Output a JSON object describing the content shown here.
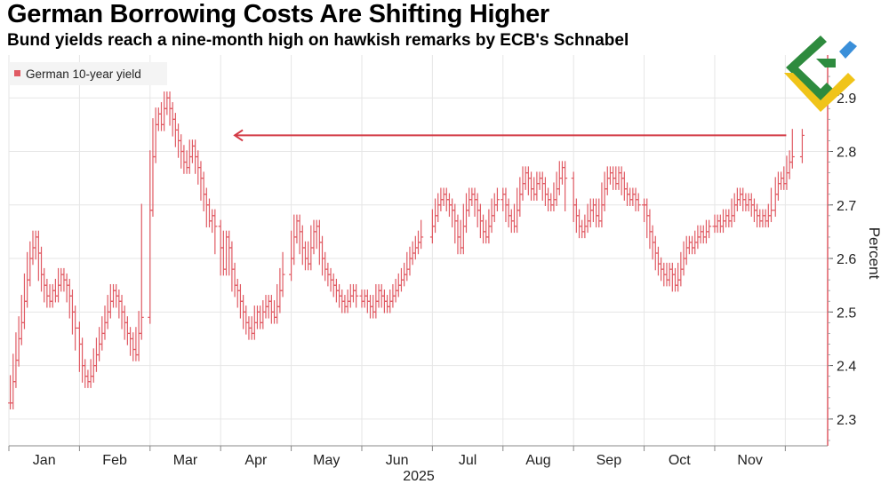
{
  "header": {
    "title": "German Borrowing Costs Are Shifting Higher",
    "subtitle": "Bund yields reach a nine-month high on hawkish remarks by ECB's Schnabel"
  },
  "colors": {
    "series": "#e05a63",
    "arrow": "#d33a45",
    "grid": "#e6e6e6",
    "axis": "#555555"
  },
  "chart_data": {
    "type": "ohlc",
    "title": "German Borrowing Costs Are Shifting Higher",
    "subtitle": "Bund yields reach a nine-month high on hawkish remarks by ECB's Schnabel",
    "legend": "German 10-year yield",
    "ylabel": "Percent",
    "xlabel": "2025",
    "ylim": [
      2.25,
      2.98
    ],
    "yticks": [
      2.3,
      2.4,
      2.5,
      2.6,
      2.7,
      2.8,
      2.9
    ],
    "months": [
      "Jan",
      "Feb",
      "Mar",
      "Apr",
      "May",
      "Jun",
      "Jul",
      "Aug",
      "Sep",
      "Oct",
      "Nov"
    ],
    "x_domain": [
      0,
      11.6
    ],
    "series": [
      {
        "name": "German 10-year yield",
        "points": [
          [
            0.02,
            2.33
          ],
          [
            0.06,
            2.37
          ],
          [
            0.1,
            2.41
          ],
          [
            0.14,
            2.45
          ],
          [
            0.18,
            2.48
          ],
          [
            0.22,
            2.52
          ],
          [
            0.26,
            2.56
          ],
          [
            0.3,
            2.6
          ],
          [
            0.34,
            2.62
          ],
          [
            0.38,
            2.64
          ],
          [
            0.42,
            2.61
          ],
          [
            0.46,
            2.57
          ],
          [
            0.5,
            2.55
          ],
          [
            0.54,
            2.53
          ],
          [
            0.58,
            2.52
          ],
          [
            0.62,
            2.54
          ],
          [
            0.66,
            2.53
          ],
          [
            0.7,
            2.55
          ],
          [
            0.74,
            2.57
          ],
          [
            0.78,
            2.56
          ],
          [
            0.82,
            2.55
          ],
          [
            0.86,
            2.53
          ],
          [
            0.9,
            2.5
          ],
          [
            0.94,
            2.47
          ],
          [
            1.0,
            2.44
          ],
          [
            1.04,
            2.4
          ],
          [
            1.08,
            2.38
          ],
          [
            1.12,
            2.37
          ],
          [
            1.16,
            2.38
          ],
          [
            1.2,
            2.4
          ],
          [
            1.24,
            2.42
          ],
          [
            1.28,
            2.44
          ],
          [
            1.32,
            2.46
          ],
          [
            1.36,
            2.48
          ],
          [
            1.4,
            2.5
          ],
          [
            1.44,
            2.52
          ],
          [
            1.48,
            2.54
          ],
          [
            1.52,
            2.53
          ],
          [
            1.56,
            2.52
          ],
          [
            1.6,
            2.5
          ],
          [
            1.64,
            2.48
          ],
          [
            1.68,
            2.46
          ],
          [
            1.72,
            2.45
          ],
          [
            1.76,
            2.43
          ],
          [
            1.8,
            2.42
          ],
          [
            1.84,
            2.46
          ],
          [
            1.88,
            2.49
          ],
          [
            2.0,
            2.69
          ],
          [
            2.04,
            2.79
          ],
          [
            2.08,
            2.85
          ],
          [
            2.12,
            2.87
          ],
          [
            2.16,
            2.85
          ],
          [
            2.2,
            2.88
          ],
          [
            2.24,
            2.9
          ],
          [
            2.28,
            2.88
          ],
          [
            2.32,
            2.86
          ],
          [
            2.36,
            2.84
          ],
          [
            2.4,
            2.82
          ],
          [
            2.44,
            2.8
          ],
          [
            2.48,
            2.78
          ],
          [
            2.52,
            2.77
          ],
          [
            2.56,
            2.79
          ],
          [
            2.6,
            2.81
          ],
          [
            2.64,
            2.79
          ],
          [
            2.68,
            2.77
          ],
          [
            2.72,
            2.75
          ],
          [
            2.76,
            2.72
          ],
          [
            2.8,
            2.7
          ],
          [
            2.84,
            2.67
          ],
          [
            2.88,
            2.68
          ],
          [
            2.92,
            2.66
          ],
          [
            3.0,
            2.62
          ],
          [
            3.04,
            2.58
          ],
          [
            3.08,
            2.64
          ],
          [
            3.12,
            2.62
          ],
          [
            3.16,
            2.58
          ],
          [
            3.2,
            2.55
          ],
          [
            3.24,
            2.54
          ],
          [
            3.28,
            2.52
          ],
          [
            3.32,
            2.5
          ],
          [
            3.36,
            2.48
          ],
          [
            3.4,
            2.47
          ],
          [
            3.44,
            2.46
          ],
          [
            3.48,
            2.48
          ],
          [
            3.52,
            2.5
          ],
          [
            3.56,
            2.48
          ],
          [
            3.6,
            2.5
          ],
          [
            3.64,
            2.51
          ],
          [
            3.68,
            2.52
          ],
          [
            3.72,
            2.5
          ],
          [
            3.76,
            2.49
          ],
          [
            3.8,
            2.51
          ],
          [
            3.84,
            2.54
          ],
          [
            3.88,
            2.57
          ],
          [
            4.0,
            2.6
          ],
          [
            4.04,
            2.64
          ],
          [
            4.08,
            2.67
          ],
          [
            4.12,
            2.65
          ],
          [
            4.16,
            2.62
          ],
          [
            4.2,
            2.6
          ],
          [
            4.24,
            2.59
          ],
          [
            4.28,
            2.62
          ],
          [
            4.32,
            2.65
          ],
          [
            4.36,
            2.66
          ],
          [
            4.4,
            2.63
          ],
          [
            4.44,
            2.6
          ],
          [
            4.48,
            2.58
          ],
          [
            4.52,
            2.57
          ],
          [
            4.56,
            2.56
          ],
          [
            4.6,
            2.55
          ],
          [
            4.64,
            2.54
          ],
          [
            4.68,
            2.53
          ],
          [
            4.72,
            2.52
          ],
          [
            4.76,
            2.51
          ],
          [
            4.8,
            2.52
          ],
          [
            4.84,
            2.53
          ],
          [
            4.88,
            2.54
          ],
          [
            4.92,
            2.53
          ],
          [
            5.0,
            2.52
          ],
          [
            5.04,
            2.53
          ],
          [
            5.08,
            2.52
          ],
          [
            5.12,
            2.51
          ],
          [
            5.16,
            2.5
          ],
          [
            5.2,
            2.52
          ],
          [
            5.24,
            2.54
          ],
          [
            5.28,
            2.53
          ],
          [
            5.32,
            2.52
          ],
          [
            5.36,
            2.51
          ],
          [
            5.4,
            2.52
          ],
          [
            5.44,
            2.53
          ],
          [
            5.48,
            2.54
          ],
          [
            5.52,
            2.55
          ],
          [
            5.56,
            2.56
          ],
          [
            5.6,
            2.57
          ],
          [
            5.64,
            2.58
          ],
          [
            5.68,
            2.6
          ],
          [
            5.72,
            2.61
          ],
          [
            5.76,
            2.62
          ],
          [
            5.8,
            2.63
          ],
          [
            5.84,
            2.64
          ],
          [
            6.0,
            2.66
          ],
          [
            6.04,
            2.68
          ],
          [
            6.08,
            2.7
          ],
          [
            6.12,
            2.71
          ],
          [
            6.16,
            2.72
          ],
          [
            6.2,
            2.71
          ],
          [
            6.24,
            2.7
          ],
          [
            6.28,
            2.69
          ],
          [
            6.32,
            2.67
          ],
          [
            6.36,
            2.64
          ],
          [
            6.4,
            2.62
          ],
          [
            6.44,
            2.66
          ],
          [
            6.48,
            2.69
          ],
          [
            6.52,
            2.71
          ],
          [
            6.56,
            2.72
          ],
          [
            6.6,
            2.71
          ],
          [
            6.64,
            2.69
          ],
          [
            6.68,
            2.67
          ],
          [
            6.72,
            2.65
          ],
          [
            6.76,
            2.64
          ],
          [
            6.8,
            2.66
          ],
          [
            6.84,
            2.68
          ],
          [
            6.88,
            2.7
          ],
          [
            6.92,
            2.71
          ],
          [
            7.0,
            2.72
          ],
          [
            7.04,
            2.7
          ],
          [
            7.08,
            2.68
          ],
          [
            7.12,
            2.67
          ],
          [
            7.16,
            2.66
          ],
          [
            7.2,
            2.69
          ],
          [
            7.24,
            2.72
          ],
          [
            7.28,
            2.74
          ],
          [
            7.32,
            2.76
          ],
          [
            7.36,
            2.75
          ],
          [
            7.4,
            2.73
          ],
          [
            7.44,
            2.72
          ],
          [
            7.48,
            2.74
          ],
          [
            7.52,
            2.75
          ],
          [
            7.56,
            2.74
          ],
          [
            7.6,
            2.72
          ],
          [
            7.64,
            2.71
          ],
          [
            7.68,
            2.7
          ],
          [
            7.72,
            2.71
          ],
          [
            7.76,
            2.73
          ],
          [
            7.8,
            2.75
          ],
          [
            7.84,
            2.77
          ],
          [
            7.88,
            2.75
          ],
          [
            8.0,
            2.7
          ],
          [
            8.04,
            2.68
          ],
          [
            8.08,
            2.66
          ],
          [
            8.12,
            2.65
          ],
          [
            8.16,
            2.66
          ],
          [
            8.2,
            2.67
          ],
          [
            8.24,
            2.69
          ],
          [
            8.28,
            2.7
          ],
          [
            8.32,
            2.68
          ],
          [
            8.36,
            2.67
          ],
          [
            8.4,
            2.7
          ],
          [
            8.44,
            2.73
          ],
          [
            8.48,
            2.75
          ],
          [
            8.52,
            2.76
          ],
          [
            8.56,
            2.75
          ],
          [
            8.6,
            2.74
          ],
          [
            8.64,
            2.76
          ],
          [
            8.68,
            2.75
          ],
          [
            8.72,
            2.73
          ],
          [
            8.76,
            2.72
          ],
          [
            8.8,
            2.71
          ],
          [
            8.84,
            2.72
          ],
          [
            8.88,
            2.71
          ],
          [
            8.92,
            2.7
          ],
          [
            9.0,
            2.7
          ],
          [
            9.04,
            2.68
          ],
          [
            9.08,
            2.65
          ],
          [
            9.12,
            2.63
          ],
          [
            9.16,
            2.61
          ],
          [
            9.2,
            2.59
          ],
          [
            9.24,
            2.58
          ],
          [
            9.28,
            2.57
          ],
          [
            9.32,
            2.56
          ],
          [
            9.36,
            2.58
          ],
          [
            9.4,
            2.57
          ],
          [
            9.44,
            2.55
          ],
          [
            9.48,
            2.56
          ],
          [
            9.52,
            2.58
          ],
          [
            9.56,
            2.6
          ],
          [
            9.6,
            2.62
          ],
          [
            9.64,
            2.63
          ],
          [
            9.68,
            2.62
          ],
          [
            9.72,
            2.63
          ],
          [
            9.76,
            2.64
          ],
          [
            9.8,
            2.65
          ],
          [
            9.84,
            2.64
          ],
          [
            9.88,
            2.65
          ],
          [
            9.92,
            2.66
          ],
          [
            10.0,
            2.66
          ],
          [
            10.04,
            2.67
          ],
          [
            10.08,
            2.66
          ],
          [
            10.12,
            2.67
          ],
          [
            10.16,
            2.68
          ],
          [
            10.2,
            2.67
          ],
          [
            10.24,
            2.68
          ],
          [
            10.28,
            2.7
          ],
          [
            10.32,
            2.71
          ],
          [
            10.36,
            2.72
          ],
          [
            10.4,
            2.71
          ],
          [
            10.44,
            2.7
          ],
          [
            10.48,
            2.71
          ],
          [
            10.52,
            2.7
          ],
          [
            10.56,
            2.69
          ],
          [
            10.6,
            2.68
          ],
          [
            10.64,
            2.67
          ],
          [
            10.68,
            2.68
          ],
          [
            10.72,
            2.67
          ],
          [
            10.76,
            2.68
          ],
          [
            10.8,
            2.69
          ],
          [
            10.86,
            2.72
          ],
          [
            10.9,
            2.74
          ],
          [
            10.94,
            2.75
          ],
          [
            10.98,
            2.74
          ],
          [
            11.02,
            2.76
          ],
          [
            11.06,
            2.78
          ],
          [
            11.1,
            2.79
          ],
          [
            11.24,
            2.83
          ]
        ]
      }
    ],
    "annotation": {
      "type": "arrow",
      "from_x": 11.24,
      "to_x": 3.2,
      "y": 2.83
    }
  },
  "logo": {
    "name": "brand logo"
  }
}
